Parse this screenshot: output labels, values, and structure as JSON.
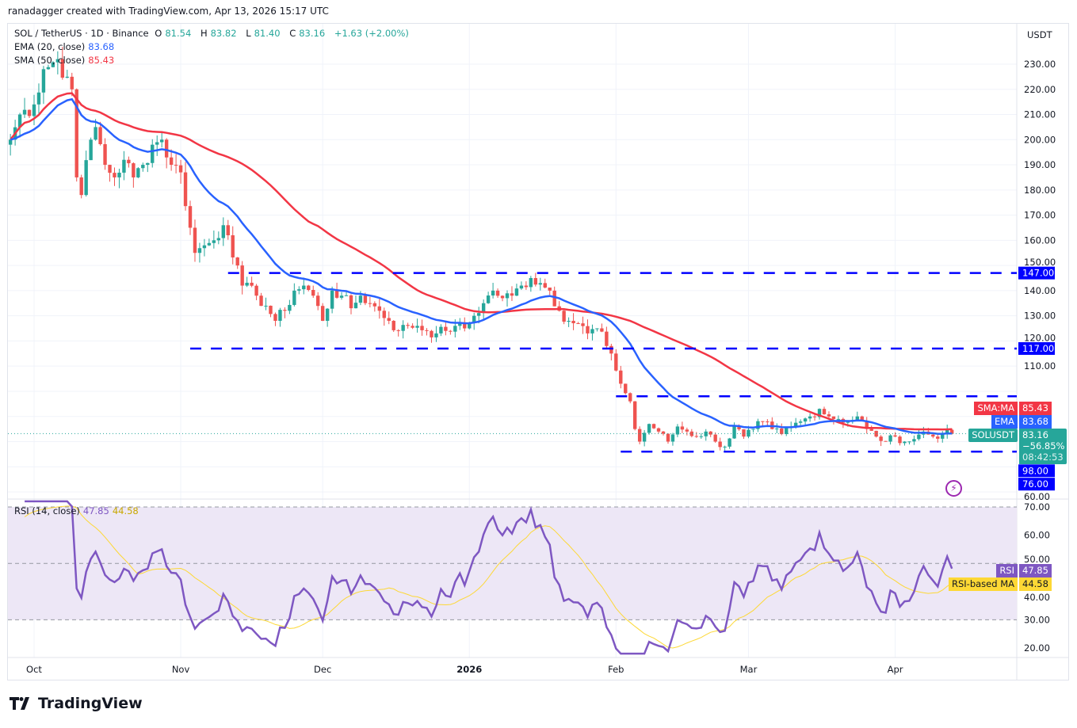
{
  "header": {
    "credit": "ranadagger created with TradingView.com, Apr 13, 2026 15:17 UTC"
  },
  "legend": {
    "symbol": "SOL / TetherUS · 1D · Binance",
    "o_label": "O",
    "o": "81.54",
    "h_label": "H",
    "h": "83.82",
    "l_label": "L",
    "l": "81.40",
    "c_label": "C",
    "c": "83.16",
    "change": "+1.63 (+2.00%)",
    "ema_label": "EMA (20, close)",
    "ema": "83.68",
    "sma_label": "SMA (50, close)",
    "sma": "85.43",
    "rsi_label": "RSI (14, close)",
    "rsi": "47.85",
    "rsi_ma": "44.58"
  },
  "axis": {
    "currency": "USDT"
  },
  "tags": {
    "sma_name": "SMA:MA",
    "sma_val": "85.43",
    "ema_name": "EMA",
    "ema_val": "83.68",
    "sym_name": "SOLUSDT",
    "price": "83.16",
    "pct": "−56.85%",
    "countdown": "08:42:53",
    "rsi_name": "RSI",
    "rsi_val": "47.85",
    "rsima_name": "RSI-based MA",
    "rsima_val": "44.58"
  },
  "brand": {
    "name": "TradingView"
  },
  "colors": {
    "up": "#26a69a",
    "down": "#ef5350",
    "ema": "#2962ff",
    "sma": "#f23645",
    "levels": "#0000ff",
    "rsi": "#7e57c2",
    "rsi_ma": "#fdd835",
    "rsi_band": "#ede7f6"
  },
  "chart_data": {
    "type": "candlestick",
    "title": "SOL / TetherUS · 1D · Binance",
    "ylim": [
      55,
      240
    ],
    "y_ticks": [
      60,
      110,
      120,
      130,
      140,
      150,
      160,
      170,
      180,
      190,
      200,
      210,
      220,
      230
    ],
    "x_ticks": [
      {
        "date": "2025-10-01",
        "label": "Oct"
      },
      {
        "date": "2025-11-01",
        "label": "Nov"
      },
      {
        "date": "2025-12-01",
        "label": "Dec"
      },
      {
        "date": "2026-01-01",
        "label": "2026"
      },
      {
        "date": "2026-02-01",
        "label": "Feb"
      },
      {
        "date": "2026-03-01",
        "label": "Mar"
      },
      {
        "date": "2026-04-01",
        "label": "Apr"
      }
    ],
    "closes": [
      [
        "2025-09-26",
        200
      ],
      [
        "2025-09-28",
        210
      ],
      [
        "2025-10-01",
        214
      ],
      [
        "2025-10-03",
        228
      ],
      [
        "2025-10-06",
        232
      ],
      [
        "2025-10-08",
        225
      ],
      [
        "2025-10-09",
        220
      ],
      [
        "2025-10-10",
        185
      ],
      [
        "2025-10-11",
        178
      ],
      [
        "2025-10-13",
        200
      ],
      [
        "2025-10-14",
        205
      ],
      [
        "2025-10-16",
        190
      ],
      [
        "2025-10-18",
        185
      ],
      [
        "2025-10-20",
        192
      ],
      [
        "2025-10-22",
        185
      ],
      [
        "2025-10-24",
        190
      ],
      [
        "2025-10-26",
        198
      ],
      [
        "2025-10-28",
        200
      ],
      [
        "2025-10-30",
        190
      ],
      [
        "2025-11-01",
        187
      ],
      [
        "2025-11-03",
        165
      ],
      [
        "2025-11-04",
        155
      ],
      [
        "2025-11-06",
        158
      ],
      [
        "2025-11-08",
        160
      ],
      [
        "2025-11-10",
        166
      ],
      [
        "2025-11-11",
        162
      ],
      [
        "2025-11-13",
        150
      ],
      [
        "2025-11-14",
        142
      ],
      [
        "2025-11-17",
        138
      ],
      [
        "2025-11-19",
        134
      ],
      [
        "2025-11-21",
        128
      ],
      [
        "2025-11-23",
        132
      ],
      [
        "2025-11-25",
        140
      ],
      [
        "2025-11-27",
        142
      ],
      [
        "2025-11-29",
        138
      ],
      [
        "2025-12-01",
        128
      ],
      [
        "2025-12-03",
        140
      ],
      [
        "2025-12-05",
        138
      ],
      [
        "2025-12-07",
        133
      ],
      [
        "2025-12-09",
        138
      ],
      [
        "2025-12-11",
        135
      ],
      [
        "2025-12-13",
        132
      ],
      [
        "2025-12-15",
        128
      ],
      [
        "2025-12-17",
        124
      ],
      [
        "2025-12-19",
        126
      ],
      [
        "2025-12-21",
        126
      ],
      [
        "2025-12-23",
        124
      ],
      [
        "2025-12-25",
        123
      ],
      [
        "2025-12-27",
        124
      ],
      [
        "2025-12-29",
        126
      ],
      [
        "2025-12-31",
        125
      ],
      [
        "2026-01-02",
        130
      ],
      [
        "2026-01-04",
        135
      ],
      [
        "2026-01-06",
        140
      ],
      [
        "2026-01-08",
        137
      ],
      [
        "2026-01-10",
        138
      ],
      [
        "2026-01-12",
        142
      ],
      [
        "2026-01-14",
        145
      ],
      [
        "2026-01-16",
        143
      ],
      [
        "2026-01-18",
        140
      ],
      [
        "2026-01-20",
        132
      ],
      [
        "2026-01-22",
        128
      ],
      [
        "2026-01-24",
        127
      ],
      [
        "2026-01-26",
        123
      ],
      [
        "2026-01-28",
        125
      ],
      [
        "2026-01-30",
        118
      ],
      [
        "2026-01-31",
        115
      ],
      [
        "2026-02-02",
        103
      ],
      [
        "2026-02-04",
        96
      ],
      [
        "2026-02-05",
        85
      ],
      [
        "2026-02-06",
        80
      ],
      [
        "2026-02-08",
        87
      ],
      [
        "2026-02-10",
        84
      ],
      [
        "2026-02-12",
        80
      ],
      [
        "2026-02-14",
        86
      ],
      [
        "2026-02-16",
        84
      ],
      [
        "2026-02-18",
        82
      ],
      [
        "2026-02-20",
        84
      ],
      [
        "2026-02-22",
        80
      ],
      [
        "2026-02-24",
        78
      ],
      [
        "2026-02-26",
        86
      ],
      [
        "2026-02-28",
        82
      ],
      [
        "2026-03-02",
        85
      ],
      [
        "2026-03-04",
        88
      ],
      [
        "2026-03-06",
        85
      ],
      [
        "2026-03-08",
        83
      ],
      [
        "2026-03-10",
        86
      ],
      [
        "2026-03-12",
        88
      ],
      [
        "2026-03-14",
        90
      ],
      [
        "2026-03-16",
        93
      ],
      [
        "2026-03-18",
        90
      ],
      [
        "2026-03-20",
        89
      ],
      [
        "2026-03-22",
        88
      ],
      [
        "2026-03-24",
        90
      ],
      [
        "2026-03-26",
        85
      ],
      [
        "2026-03-28",
        82
      ],
      [
        "2026-03-30",
        80
      ],
      [
        "2026-04-01",
        82
      ],
      [
        "2026-04-03",
        80
      ],
      [
        "2026-04-05",
        81
      ],
      [
        "2026-04-07",
        84
      ],
      [
        "2026-04-09",
        82
      ],
      [
        "2026-04-11",
        83
      ],
      [
        "2026-04-13",
        83.16
      ]
    ],
    "levels": [
      {
        "price": 147,
        "label": "147.00",
        "from": "2025-11-11"
      },
      {
        "price": 117,
        "label": "117.00",
        "from": "2025-11-03"
      },
      {
        "price": 98,
        "label": "98.00",
        "from": "2026-02-01"
      },
      {
        "price": 76,
        "label": "76.00",
        "from": "2026-02-02"
      }
    ],
    "rsi": {
      "ylim": [
        17,
        73
      ],
      "y_ticks": [
        20,
        30,
        40,
        50,
        60,
        70
      ],
      "band": [
        30,
        70
      ]
    }
  }
}
